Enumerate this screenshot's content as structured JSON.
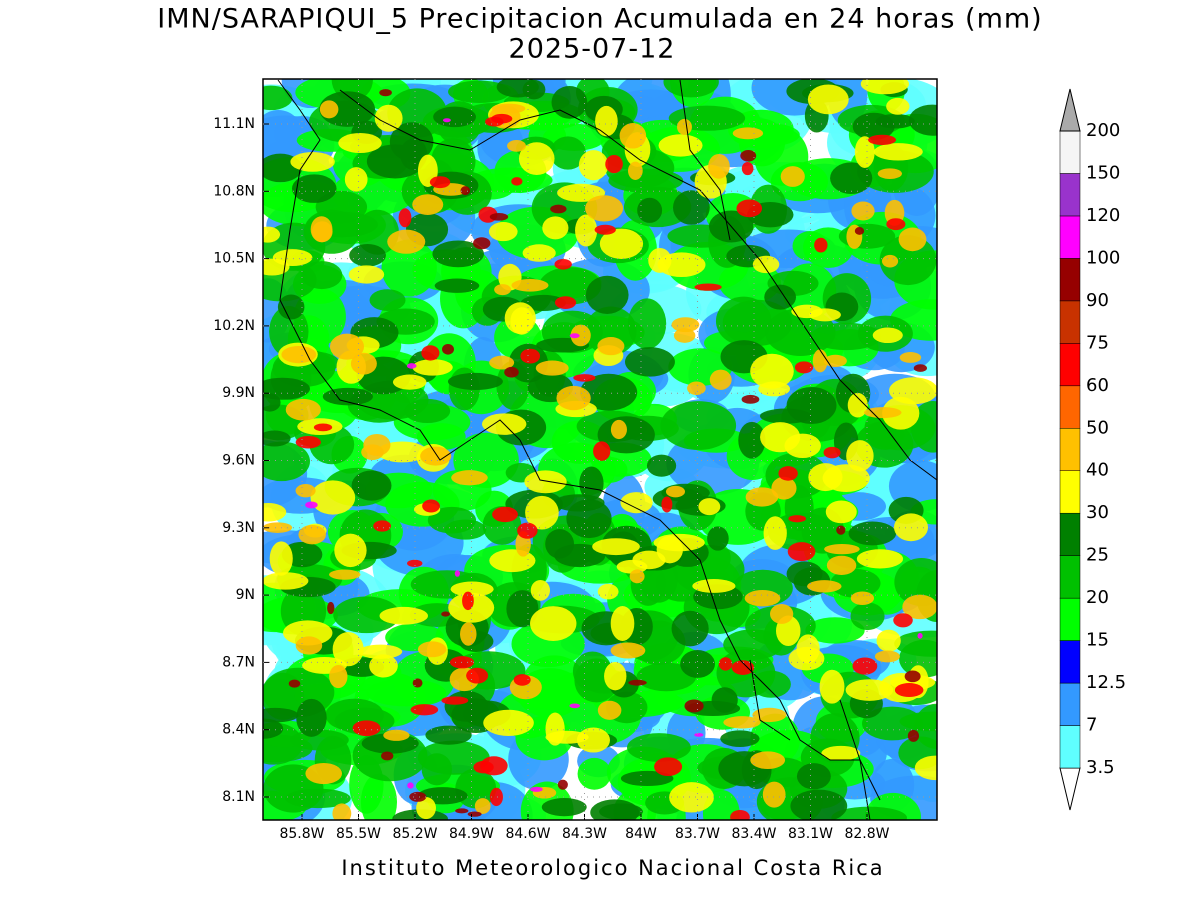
{
  "title": "IMN/SARAPIQUI_5 Precipitacion Acumulada en 24 horas (mm)",
  "subtitle": "2025-07-12",
  "map": {
    "lat_labels": [
      "11.1N",
      "10.8N",
      "10.5N",
      "10.2N",
      "9.9N",
      "9.6N",
      "9.3N",
      "9N",
      "8.7N",
      "8.4N",
      "8.1N"
    ],
    "lon_labels": [
      "85.8W",
      "85.5W",
      "85.2W",
      "84.9W",
      "84.6W",
      "84.3W",
      "84W",
      "83.7W",
      "83.4W",
      "83.1W",
      "82.8W"
    ]
  },
  "colorbar": {
    "levels": [
      "3.5",
      "7",
      "12.5",
      "15",
      "20",
      "25",
      "30",
      "40",
      "50",
      "60",
      "75",
      "90",
      "100",
      "120",
      "150",
      "200"
    ],
    "colors": [
      "#ffffff",
      "#5fffff",
      "#3399ff",
      "#0000ff",
      "#00ff00",
      "#00c000",
      "#008000",
      "#ffff00",
      "#ffc000",
      "#ff6600",
      "#ff0000",
      "#c83200",
      "#960000",
      "#ff00ff",
      "#9933cc",
      "#f5f5f5",
      "#aaaaaa"
    ]
  },
  "footer": "Instituto Meteorologico Nacional Costa Rica"
}
